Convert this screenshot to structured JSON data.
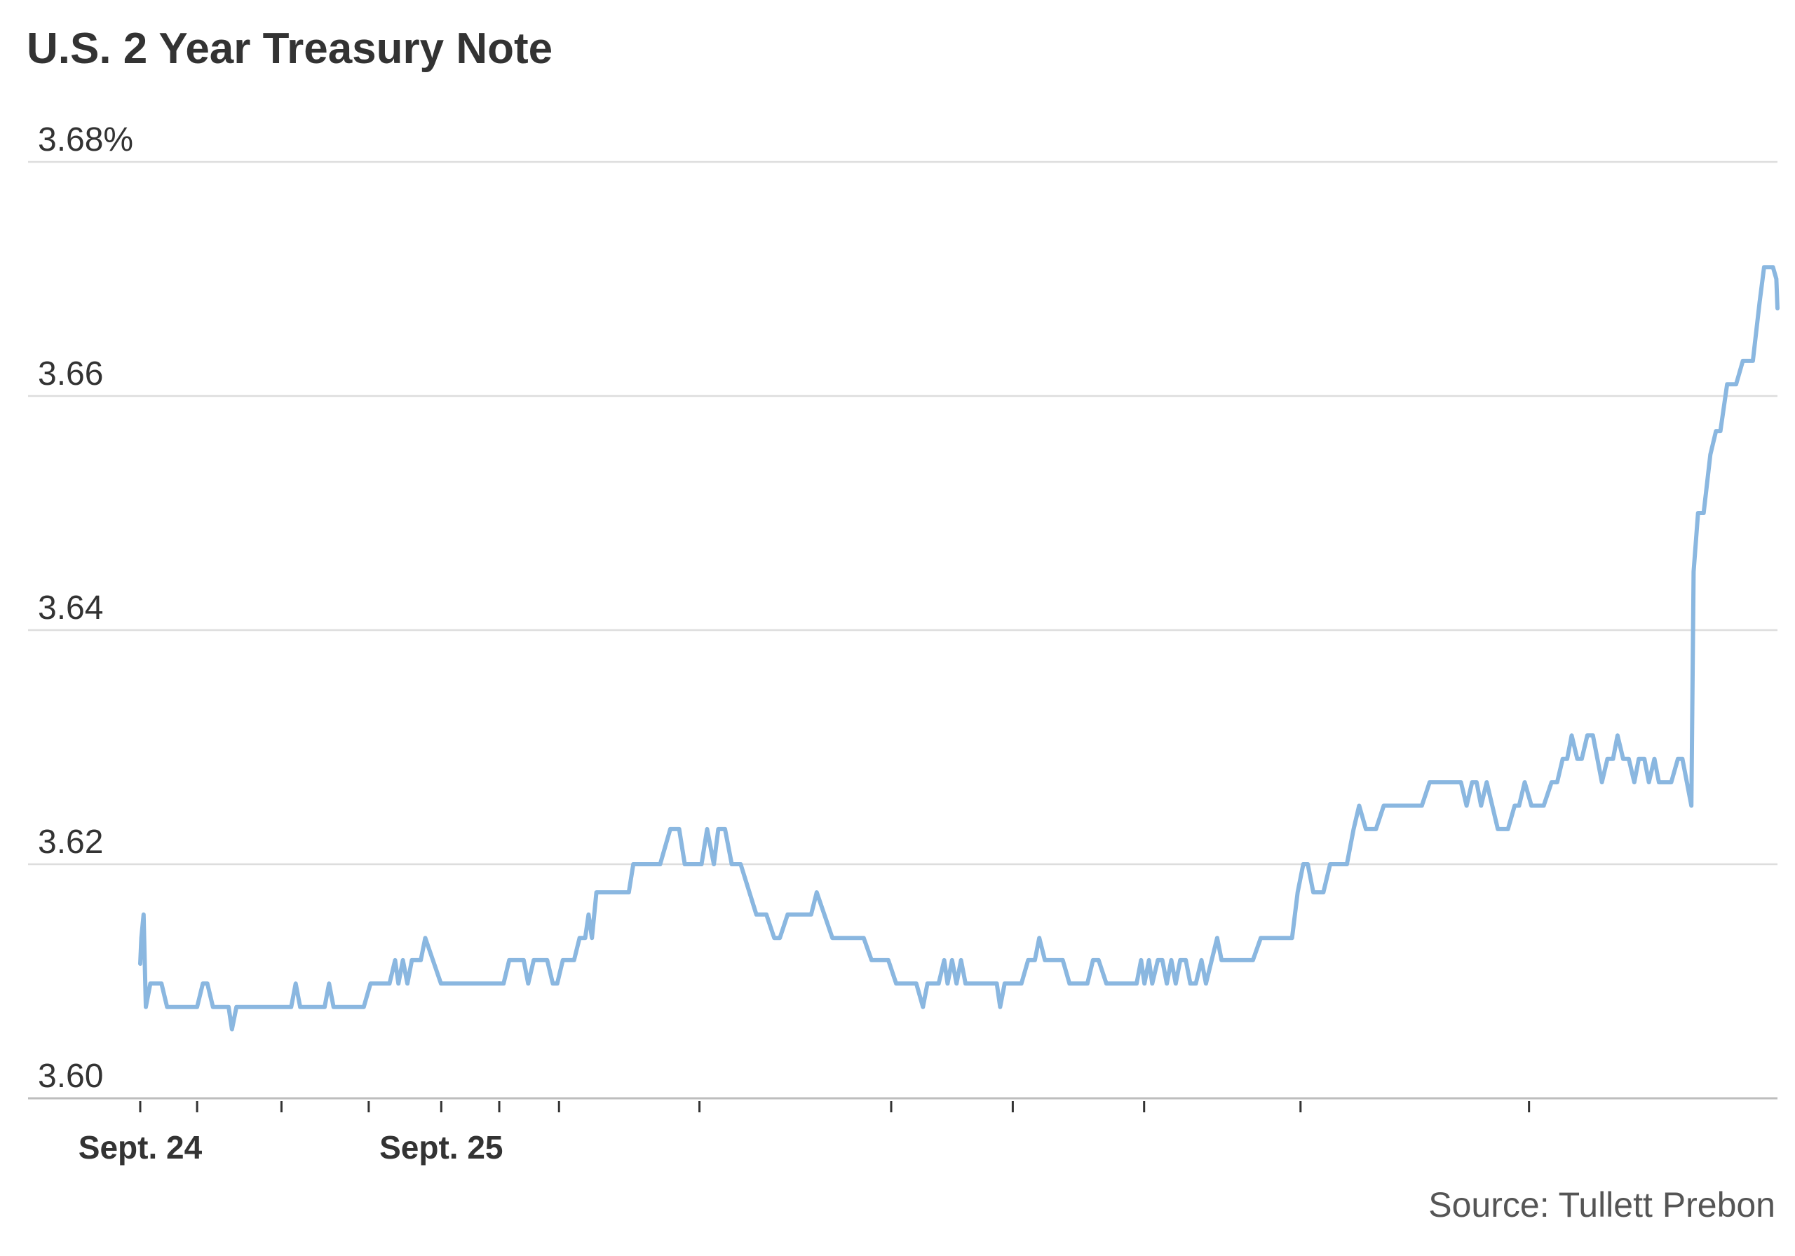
{
  "title": "U.S. 2 Year Treasury Note",
  "source": "Source: Tullett Prebon",
  "chart_data": {
    "type": "line",
    "title": "U.S. 2 Year Treasury Note",
    "ylabel": "",
    "xlabel": "",
    "yunit": "%",
    "ylim": [
      3.6,
      3.68
    ],
    "yticks": [
      3.6,
      3.62,
      3.64,
      3.66,
      3.68
    ],
    "ytick_labels": [
      "3.60",
      "3.62",
      "3.64",
      "3.66",
      "3.68%"
    ],
    "x_labels": [
      {
        "label": "Sept. 24",
        "t": 0.0
      },
      {
        "label": "Sept. 25",
        "t": 0.1884
      }
    ],
    "x_ticks": [
      0.0,
      0.0356,
      0.0884,
      0.143,
      0.1884,
      0.2247,
      0.2621,
      0.35,
      0.47,
      0.5461,
      0.6283,
      0.7262,
      0.8692
    ],
    "grid": true,
    "legend": "none",
    "line_color": "#8ab7e0",
    "series": [
      {
        "values": [
          [
            0.0,
            3.6115
          ],
          [
            0.0007,
            3.6137
          ],
          [
            0.0021,
            3.6157
          ],
          [
            0.0035,
            3.6078
          ],
          [
            0.0063,
            3.6098
          ],
          [
            0.0133,
            3.6098
          ],
          [
            0.0168,
            3.6078
          ],
          [
            0.0356,
            3.6078
          ],
          [
            0.0392,
            3.6098
          ],
          [
            0.042,
            3.6098
          ],
          [
            0.0455,
            3.6078
          ],
          [
            0.0553,
            3.6078
          ],
          [
            0.0574,
            3.6059
          ],
          [
            0.0602,
            3.6078
          ],
          [
            0.0945,
            3.6078
          ],
          [
            0.0973,
            3.6098
          ],
          [
            0.1001,
            3.6078
          ],
          [
            0.1154,
            3.6078
          ],
          [
            0.1182,
            3.6098
          ],
          [
            0.121,
            3.6078
          ],
          [
            0.1399,
            3.6078
          ],
          [
            0.1441,
            3.6098
          ],
          [
            0.156,
            3.6098
          ],
          [
            0.1595,
            3.6118
          ],
          [
            0.1616,
            3.6098
          ],
          [
            0.1644,
            3.6118
          ],
          [
            0.1672,
            3.6098
          ],
          [
            0.17,
            3.6118
          ],
          [
            0.1756,
            3.6118
          ],
          [
            0.1784,
            3.6137
          ],
          [
            0.1882,
            3.6098
          ],
          [
            0.2274,
            3.6098
          ],
          [
            0.2309,
            3.6118
          ],
          [
            0.24,
            3.6118
          ],
          [
            0.2428,
            3.6098
          ],
          [
            0.2463,
            3.6118
          ],
          [
            0.2547,
            3.6118
          ],
          [
            0.2582,
            3.6098
          ],
          [
            0.261,
            3.6098
          ],
          [
            0.2645,
            3.6118
          ],
          [
            0.2715,
            3.6118
          ],
          [
            0.275,
            3.6137
          ],
          [
            0.2785,
            3.6137
          ],
          [
            0.2806,
            3.6157
          ],
          [
            0.2827,
            3.6137
          ],
          [
            0.2855,
            3.6176
          ],
          [
            0.3058,
            3.6176
          ],
          [
            0.3086,
            3.62
          ],
          [
            0.3254,
            3.62
          ],
          [
            0.3317,
            3.623
          ],
          [
            0.3373,
            3.623
          ],
          [
            0.3408,
            3.62
          ],
          [
            0.3513,
            3.62
          ],
          [
            0.3548,
            3.623
          ],
          [
            0.359,
            3.62
          ],
          [
            0.3618,
            3.623
          ],
          [
            0.366,
            3.623
          ],
          [
            0.3702,
            3.62
          ],
          [
            0.3758,
            3.62
          ],
          [
            0.3856,
            3.6157
          ],
          [
            0.3919,
            3.6157
          ],
          [
            0.3968,
            3.6137
          ],
          [
            0.4003,
            3.6137
          ],
          [
            0.4052,
            3.6157
          ],
          [
            0.4199,
            3.6157
          ],
          [
            0.4234,
            3.6176
          ],
          [
            0.4332,
            3.6137
          ],
          [
            0.4388,
            3.6137
          ],
          [
            0.4528,
            3.6137
          ],
          [
            0.4577,
            3.6118
          ],
          [
            0.4682,
            3.6118
          ],
          [
            0.4731,
            3.6098
          ],
          [
            0.4857,
            3.6098
          ],
          [
            0.4899,
            3.6078
          ],
          [
            0.4927,
            3.6098
          ],
          [
            0.4997,
            3.6098
          ],
          [
            0.5032,
            3.6118
          ],
          [
            0.5053,
            3.6098
          ],
          [
            0.5081,
            3.6118
          ],
          [
            0.5109,
            3.6098
          ],
          [
            0.5137,
            3.6118
          ],
          [
            0.5165,
            3.6098
          ],
          [
            0.5361,
            3.6098
          ],
          [
            0.5382,
            3.6078
          ],
          [
            0.541,
            3.6098
          ],
          [
            0.5515,
            3.6098
          ],
          [
            0.5557,
            3.6118
          ],
          [
            0.5599,
            3.6118
          ],
          [
            0.5627,
            3.6137
          ],
          [
            0.5662,
            3.6118
          ],
          [
            0.5774,
            3.6118
          ],
          [
            0.5816,
            3.6098
          ],
          [
            0.5928,
            3.6098
          ],
          [
            0.5963,
            3.6118
          ],
          [
            0.5998,
            3.6118
          ],
          [
            0.6047,
            3.6098
          ],
          [
            0.6236,
            3.6098
          ],
          [
            0.6264,
            3.6118
          ],
          [
            0.6285,
            3.6098
          ],
          [
            0.6313,
            3.6118
          ],
          [
            0.6334,
            3.6098
          ],
          [
            0.6369,
            3.6118
          ],
          [
            0.6397,
            3.6118
          ],
          [
            0.6425,
            3.6098
          ],
          [
            0.6453,
            3.6118
          ],
          [
            0.6481,
            3.6098
          ],
          [
            0.6509,
            3.6118
          ],
          [
            0.6544,
            3.6118
          ],
          [
            0.6572,
            3.6098
          ],
          [
            0.6607,
            3.6098
          ],
          [
            0.6642,
            3.6118
          ],
          [
            0.667,
            3.6098
          ],
          [
            0.674,
            3.6137
          ],
          [
            0.6768,
            3.6118
          ],
          [
            0.6964,
            3.6118
          ],
          [
            0.7013,
            3.6137
          ],
          [
            0.7209,
            3.6137
          ],
          [
            0.7244,
            3.6176
          ],
          [
            0.7279,
            3.62
          ],
          [
            0.7307,
            3.62
          ],
          [
            0.7342,
            3.6176
          ],
          [
            0.7405,
            3.6176
          ],
          [
            0.7447,
            3.62
          ],
          [
            0.7552,
            3.62
          ],
          [
            0.7594,
            3.623
          ],
          [
            0.7629,
            3.625
          ],
          [
            0.7671,
            3.623
          ],
          [
            0.7734,
            3.623
          ],
          [
            0.7783,
            3.625
          ],
          [
            0.8021,
            3.625
          ],
          [
            0.807,
            3.627
          ],
          [
            0.8266,
            3.627
          ],
          [
            0.8301,
            3.625
          ],
          [
            0.8336,
            3.627
          ],
          [
            0.8364,
            3.627
          ],
          [
            0.8392,
            3.625
          ],
          [
            0.8427,
            3.627
          ],
          [
            0.8497,
            3.623
          ],
          [
            0.856,
            3.623
          ],
          [
            0.8602,
            3.625
          ],
          [
            0.863,
            3.625
          ],
          [
            0.8665,
            3.627
          ],
          [
            0.8707,
            3.625
          ],
          [
            0.8784,
            3.625
          ],
          [
            0.8833,
            3.627
          ],
          [
            0.8868,
            3.627
          ],
          [
            0.8903,
            3.629
          ],
          [
            0.8931,
            3.629
          ],
          [
            0.8959,
            3.631
          ],
          [
            0.8994,
            3.629
          ],
          [
            0.9022,
            3.629
          ],
          [
            0.9057,
            3.631
          ],
          [
            0.9092,
            3.631
          ],
          [
            0.9148,
            3.627
          ],
          [
            0.9183,
            3.629
          ],
          [
            0.9218,
            3.629
          ],
          [
            0.9246,
            3.631
          ],
          [
            0.9281,
            3.629
          ],
          [
            0.9316,
            3.629
          ],
          [
            0.9351,
            3.627
          ],
          [
            0.9379,
            3.629
          ],
          [
            0.9414,
            3.629
          ],
          [
            0.9442,
            3.627
          ],
          [
            0.9477,
            3.629
          ],
          [
            0.9505,
            3.627
          ],
          [
            0.9582,
            3.627
          ],
          [
            0.9624,
            3.629
          ],
          [
            0.9652,
            3.629
          ],
          [
            0.9708,
            3.625
          ],
          [
            0.9722,
            3.645
          ],
          [
            0.975,
            3.65
          ],
          [
            0.9785,
            3.65
          ],
          [
            0.9827,
            3.655
          ],
          [
            0.9862,
            3.657
          ],
          [
            0.989,
            3.657
          ],
          [
            0.9932,
            3.661
          ],
          [
            0.9988,
            3.661
          ],
          [
            1.003,
            3.663
          ],
          [
            1.0093,
            3.663
          ],
          [
            1.0135,
            3.668
          ],
          [
            1.0163,
            3.671
          ],
          [
            1.0219,
            3.671
          ],
          [
            1.024,
            3.67
          ],
          [
            1.0247,
            3.6675
          ]
        ]
      }
    ]
  }
}
